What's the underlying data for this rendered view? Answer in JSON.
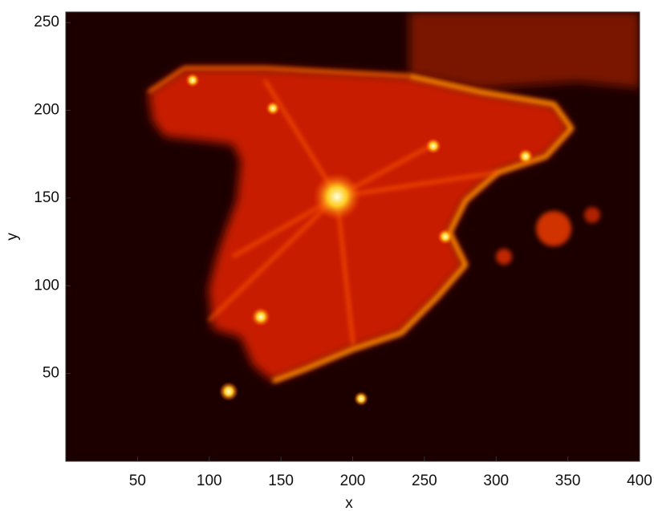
{
  "chart_data": {
    "type": "image",
    "xlabel": "x",
    "ylabel": "y",
    "xlim": [
      0,
      400
    ],
    "ylim": [
      0,
      256
    ],
    "xticks": [
      50,
      100,
      150,
      200,
      250,
      300,
      350,
      400
    ],
    "yticks": [
      50,
      100,
      150,
      200,
      250
    ]
  }
}
